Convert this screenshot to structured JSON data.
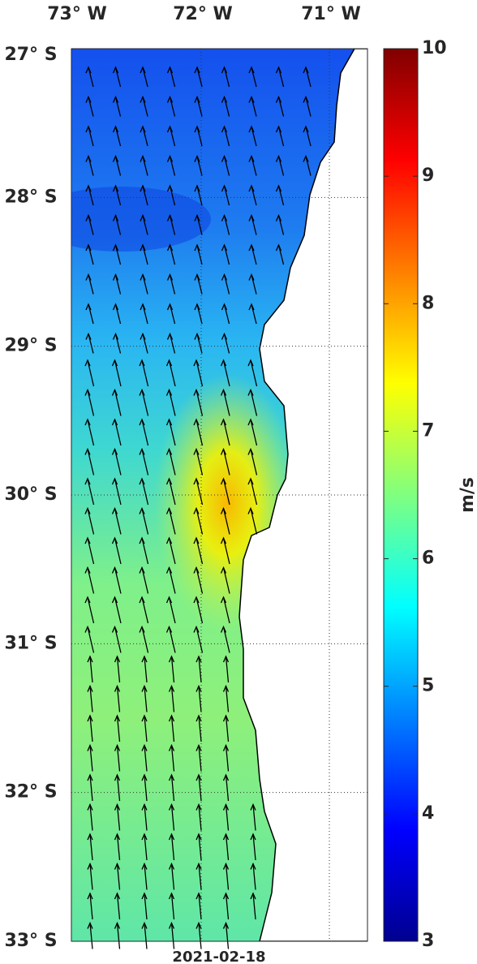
{
  "map": {
    "lon_labels": [
      "73° W",
      "72° W",
      "71° W"
    ],
    "lat_labels": [
      "27° S",
      "28° S",
      "29° S",
      "30° S",
      "31° S",
      "32° S",
      "33° S"
    ],
    "date": "2021-02-18",
    "colorbar": {
      "label": "m/s",
      "lim": [
        3,
        10
      ],
      "ticks": [
        3,
        4,
        5,
        6,
        7,
        8,
        9,
        10
      ]
    }
  }
}
